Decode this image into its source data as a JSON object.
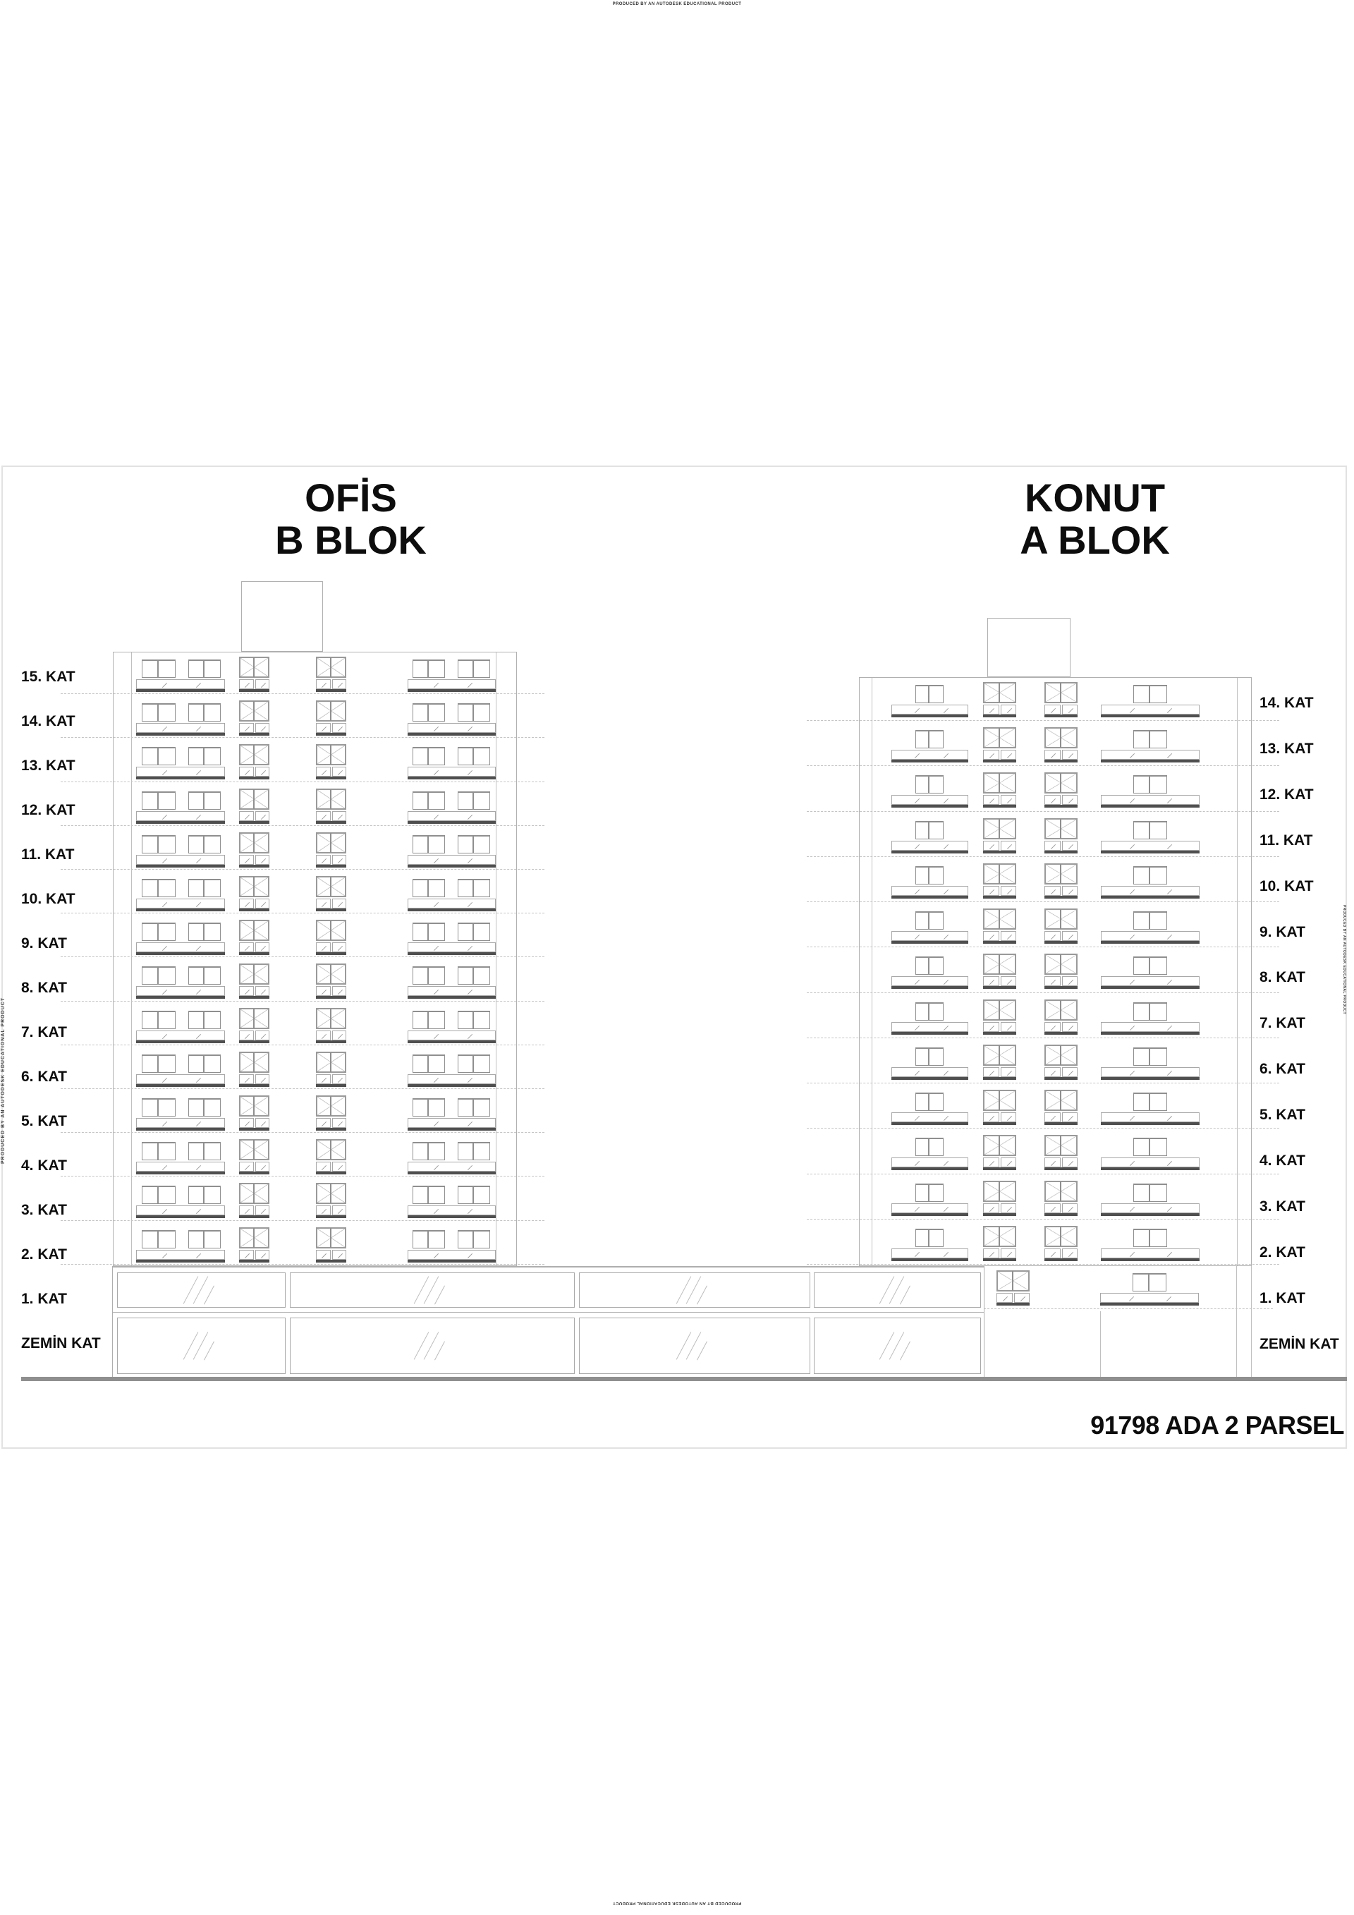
{
  "produced_by": {
    "top": "PRODUCED BY AN AUTODESK EDUCATIONAL PRODUCT",
    "bottom": "PRODUCED BY AN AUTODESK EDUCATIONAL PRODUCT",
    "left": "PRODUCED BY AN AUTODESK EDUCATIONAL PRODUCT",
    "right": "PRODUCED BY AN AUTODESK EDUCATIONAL PRODUCT"
  },
  "titles": {
    "b_block": {
      "line1": "OFİS",
      "line2": "B BLOK"
    },
    "a_block": {
      "line1": "KONUT",
      "line2": "A BLOK"
    }
  },
  "b_block": {
    "use": "OFİS",
    "floor_labels": [
      "15. KAT",
      "14. KAT",
      "13. KAT",
      "12. KAT",
      "11. KAT",
      "10. KAT",
      "9. KAT",
      "8. KAT",
      "7. KAT",
      "6. KAT",
      "5. KAT",
      "4. KAT",
      "3. KAT",
      "2. KAT",
      "1. KAT",
      "ZEMİN KAT"
    ],
    "tower_window_floors": 14
  },
  "a_block": {
    "use": "KONUT",
    "floor_labels": [
      "14. KAT",
      "13. KAT",
      "12. KAT",
      "11. KAT",
      "10. KAT",
      "9. KAT",
      "8. KAT",
      "7. KAT",
      "6. KAT",
      "5. KAT",
      "4. KAT",
      "3. KAT",
      "2. KAT",
      "1. KAT",
      "ZEMİN KAT"
    ],
    "tower_window_floors": 13
  },
  "podium": {
    "storefront_rows": 2,
    "panels_per_row": 4
  },
  "parcel_label": "91798 ADA 2 PARSEL",
  "colors": {
    "paper": "#ffffff",
    "frame": "#e2e2e2",
    "linework": "#a8a8a8",
    "slab": "#4f4f4f",
    "ground": "#8f8f8f",
    "text": "#0d0d0d"
  }
}
